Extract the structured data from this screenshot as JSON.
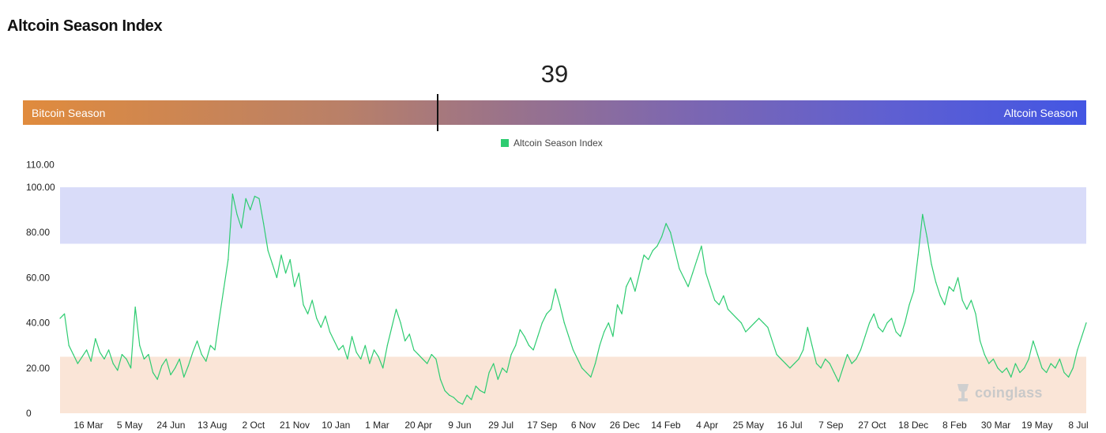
{
  "page": {
    "title": "Altcoin Season Index"
  },
  "gauge": {
    "current_value": "39",
    "left_label": "Bitcoin Season",
    "right_label": "Altcoin Season"
  },
  "brand": {
    "watermark": "coinglass"
  },
  "chart_data": {
    "type": "line",
    "legend": {
      "position": "top-center",
      "entries": [
        "Altcoin Season Index"
      ]
    },
    "y_ticks": [
      "0",
      "20.00",
      "40.00",
      "60.00",
      "80.00",
      "100.00",
      "110.00"
    ],
    "y_tick_values": [
      0,
      20,
      40,
      60,
      80,
      100,
      110
    ],
    "ylim": [
      0,
      110
    ],
    "x_ticks": [
      "16 Mar",
      "5 May",
      "24 Jun",
      "13 Aug",
      "2 Oct",
      "21 Nov",
      "10 Jan",
      "1 Mar",
      "20 Apr",
      "9 Jun",
      "29 Jul",
      "17 Sep",
      "6 Nov",
      "26 Dec",
      "14 Feb",
      "4 Apr",
      "25 May",
      "16 Jul",
      "7 Sep",
      "27 Oct",
      "18 Dec",
      "8 Feb",
      "30 Mar",
      "19 May",
      "8 Jul"
    ],
    "bands": [
      {
        "name": "Altcoin Season zone",
        "from": 75,
        "to": 100,
        "color": "#d9dcf9"
      },
      {
        "name": "Bitcoin Season zone",
        "from": 0,
        "to": 25,
        "color": "#fae5d7"
      }
    ],
    "grid": false,
    "series": [
      {
        "name": "Altcoin Season Index",
        "color": "#2ecc71",
        "values": [
          42,
          44,
          30,
          26,
          22,
          25,
          28,
          23,
          33,
          27,
          24,
          28,
          22,
          19,
          26,
          24,
          20,
          47,
          30,
          24,
          26,
          18,
          15,
          21,
          24,
          17,
          20,
          24,
          16,
          21,
          27,
          32,
          26,
          23,
          30,
          28,
          42,
          55,
          68,
          97,
          88,
          82,
          95,
          90,
          96,
          95,
          84,
          72,
          66,
          60,
          70,
          62,
          68,
          56,
          62,
          48,
          44,
          50,
          42,
          38,
          43,
          36,
          32,
          28,
          30,
          24,
          34,
          27,
          24,
          30,
          22,
          28,
          25,
          20,
          30,
          38,
          46,
          40,
          32,
          35,
          28,
          26,
          24,
          22,
          26,
          24,
          15,
          10,
          8,
          7,
          5,
          4,
          8,
          6,
          12,
          10,
          9,
          18,
          22,
          15,
          20,
          18,
          26,
          30,
          37,
          34,
          30,
          28,
          34,
          40,
          44,
          46,
          55,
          48,
          40,
          34,
          28,
          24,
          20,
          18,
          16,
          22,
          30,
          36,
          40,
          34,
          48,
          44,
          56,
          60,
          54,
          62,
          70,
          68,
          72,
          74,
          78,
          84,
          80,
          72,
          64,
          60,
          56,
          62,
          68,
          74,
          62,
          56,
          50,
          48,
          52,
          46,
          44,
          42,
          40,
          36,
          38,
          40,
          42,
          40,
          38,
          32,
          26,
          24,
          22,
          20,
          22,
          24,
          28,
          38,
          30,
          22,
          20,
          24,
          22,
          18,
          14,
          20,
          26,
          22,
          24,
          28,
          34,
          40,
          44,
          38,
          36,
          40,
          42,
          36,
          34,
          40,
          48,
          54,
          70,
          88,
          78,
          66,
          58,
          52,
          48,
          56,
          54,
          60,
          50,
          46,
          50,
          44,
          32,
          26,
          22,
          24,
          20,
          18,
          20,
          16,
          22,
          18,
          20,
          24,
          32,
          26,
          20,
          18,
          22,
          20,
          24,
          18,
          16,
          20,
          28,
          34,
          40
        ]
      }
    ]
  }
}
